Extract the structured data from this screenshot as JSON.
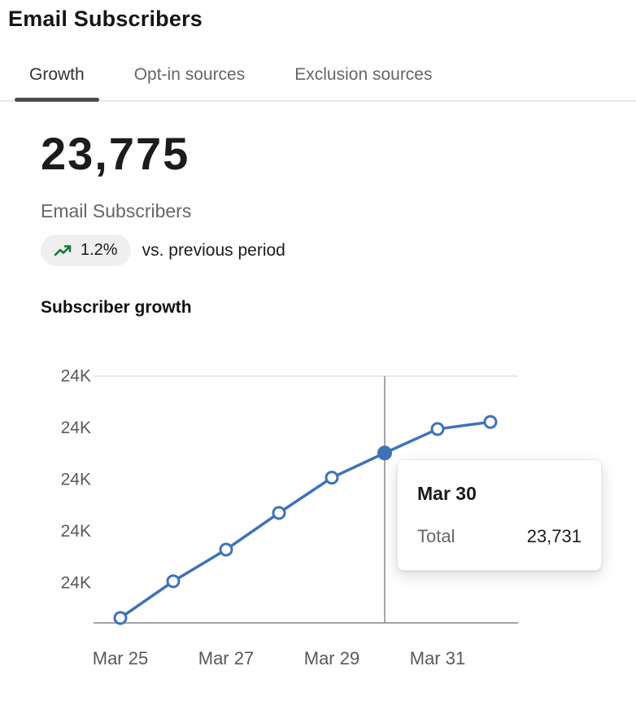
{
  "page": {
    "title": "Email Subscribers"
  },
  "tabs": [
    {
      "label": "Growth",
      "active": true
    },
    {
      "label": "Opt-in sources",
      "active": false
    },
    {
      "label": "Exclusion sources",
      "active": false
    }
  ],
  "summary": {
    "value": "23,775",
    "label": "Email Subscribers",
    "change": "1.2%",
    "change_direction": "up",
    "change_suffix": "vs. previous period"
  },
  "section": {
    "heading": "Subscriber growth"
  },
  "colors": {
    "line": "#3e72b8",
    "positive": "#0e7a3d",
    "axis": "#a3a3a3",
    "grid": "#e1e1e1",
    "crosshair": "#8a8a8a",
    "tick_text": "#5a5a5a"
  },
  "chart_data": {
    "type": "line",
    "title": "Subscriber growth",
    "x": [
      "Mar 25",
      "Mar 26",
      "Mar 27",
      "Mar 28",
      "Mar 29",
      "Mar 30",
      "Mar 31",
      "Apr 1"
    ],
    "values": [
      23497,
      23549,
      23594,
      23646,
      23696,
      23731,
      23765,
      23775
    ],
    "x_ticks": [
      {
        "index": 0,
        "label": "Mar 25"
      },
      {
        "index": 2,
        "label": "Mar 27"
      },
      {
        "index": 4,
        "label": "Mar 29"
      },
      {
        "index": 6,
        "label": "Mar 31"
      }
    ],
    "y_tick_labels": [
      "24K",
      "24K",
      "24K",
      "24K",
      "24K"
    ],
    "ylim": [
      23490,
      23840
    ],
    "grid": "top gridline and bottom axis only",
    "legend": "none",
    "highlight_index": 5,
    "tooltip": {
      "title": "Mar 30",
      "label": "Total",
      "value": "23,731"
    }
  }
}
